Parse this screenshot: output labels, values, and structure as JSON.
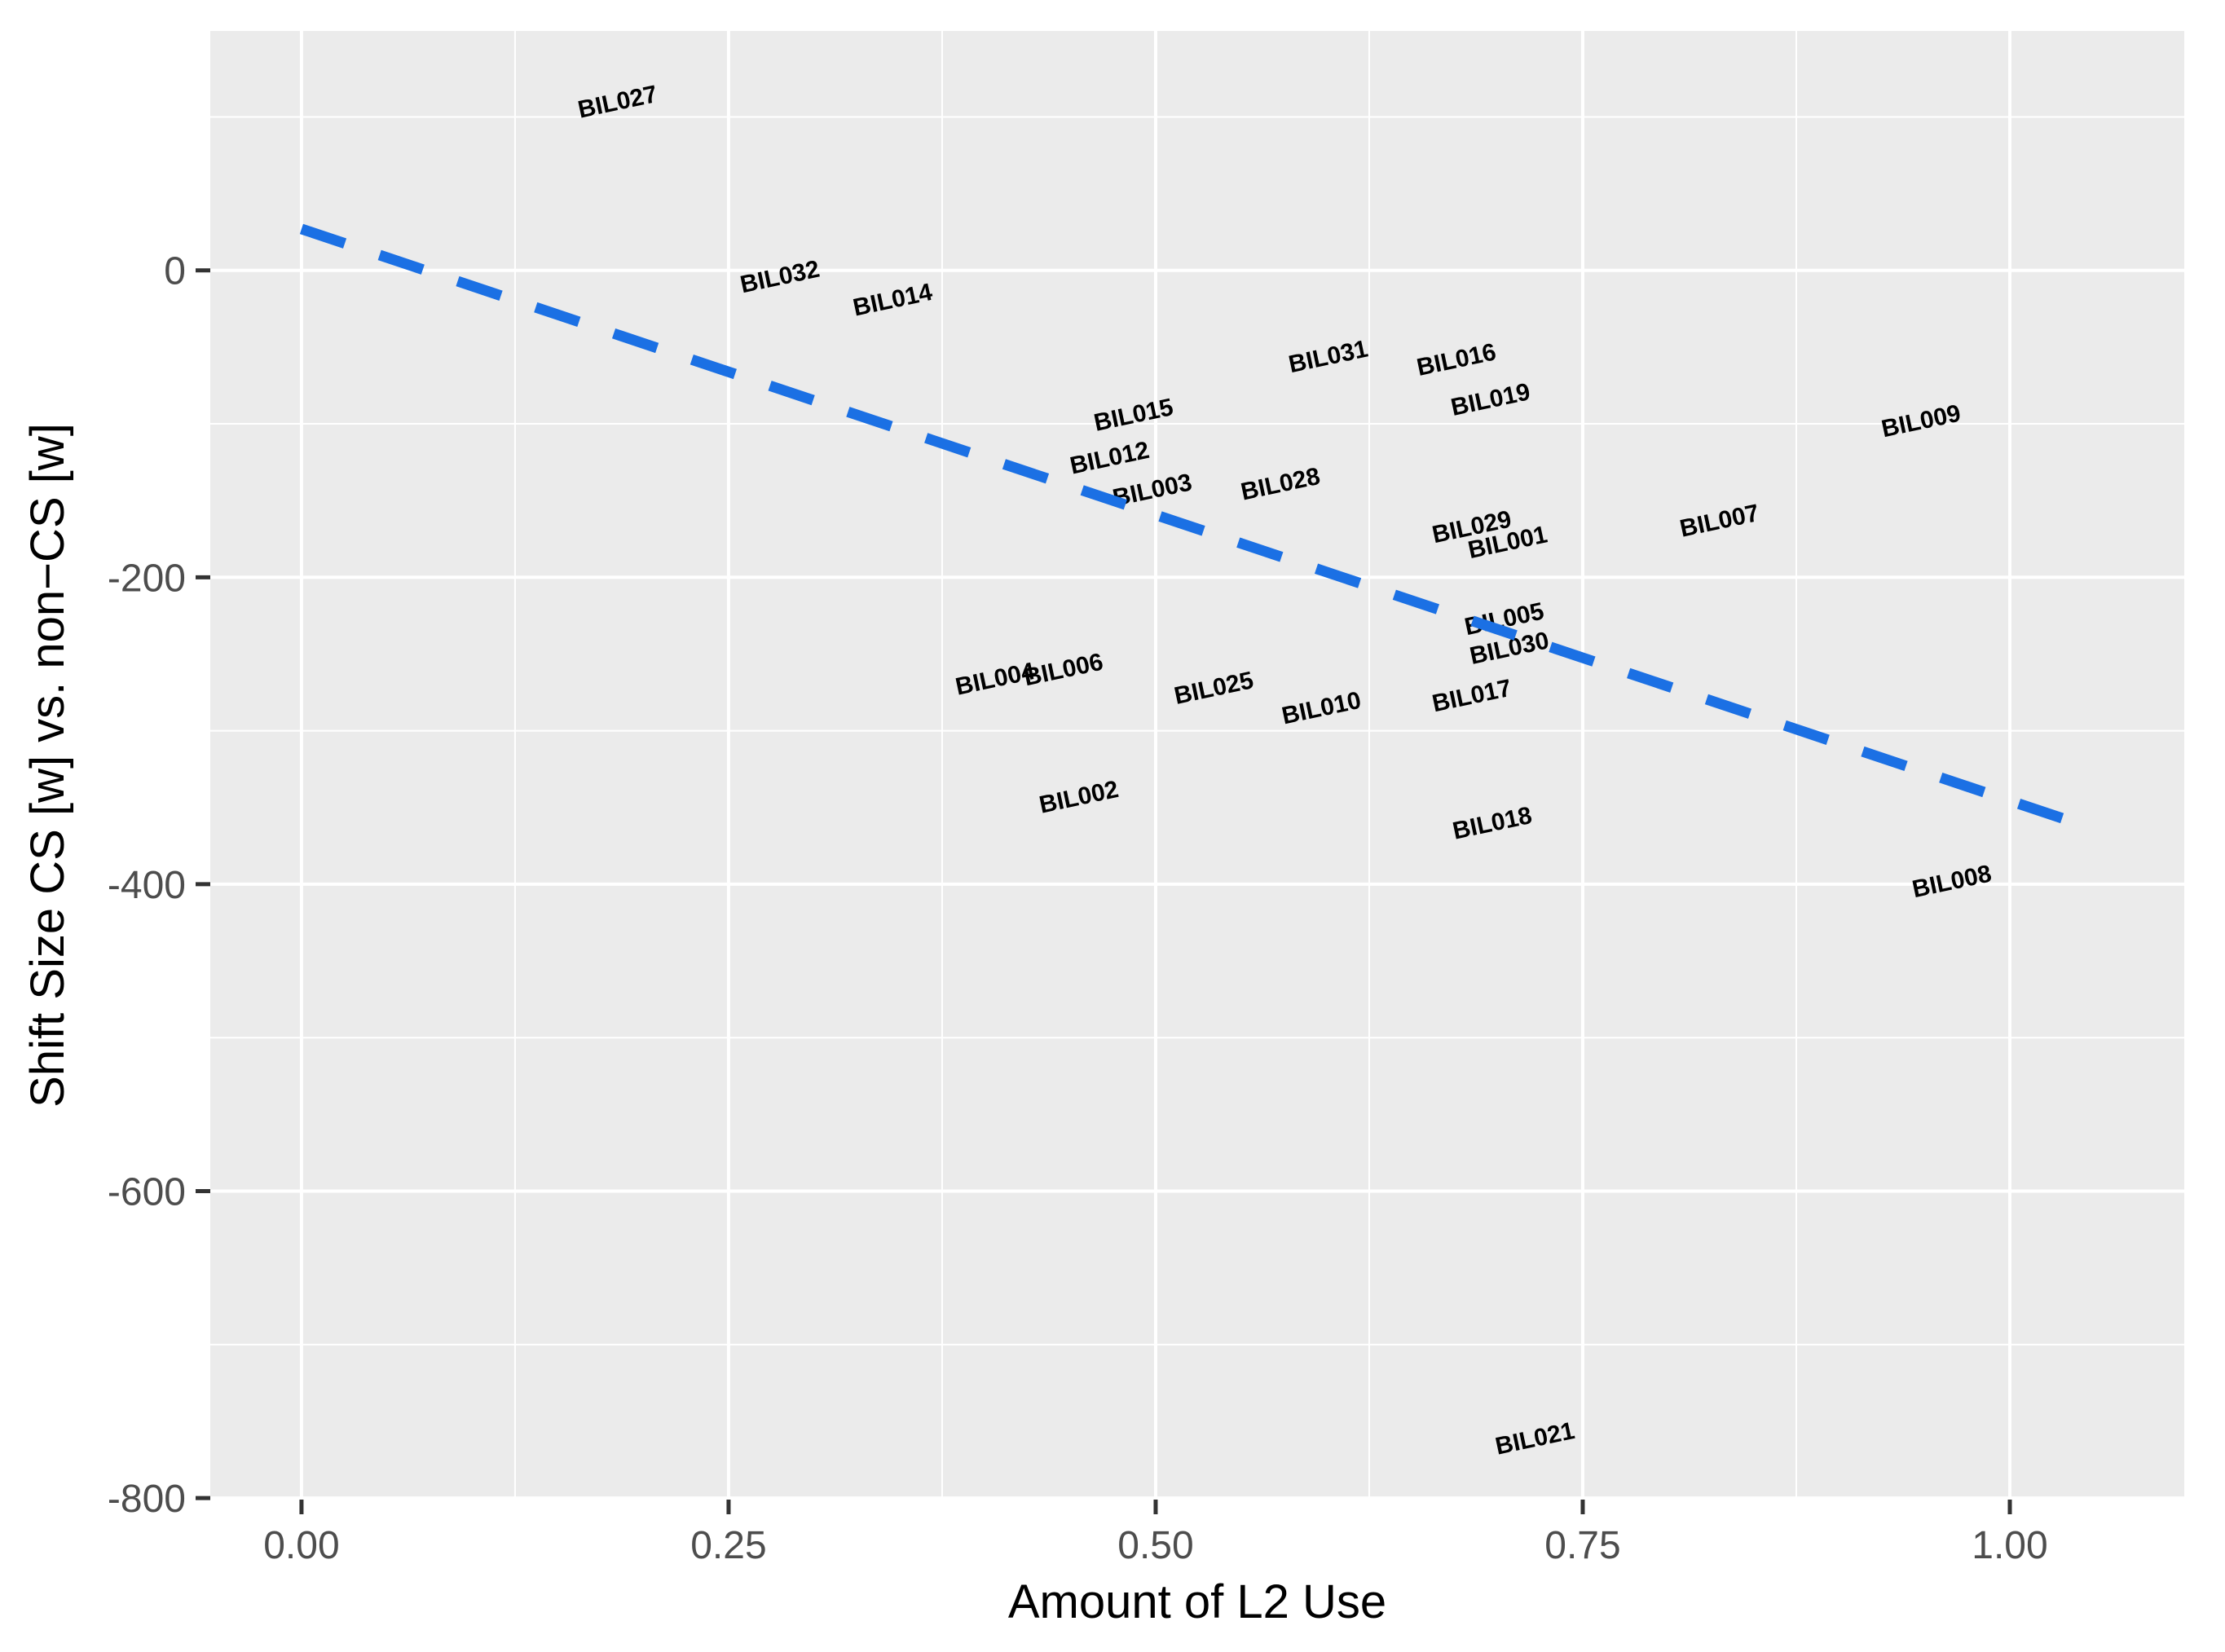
{
  "chart_data": {
    "type": "scatter",
    "title": "",
    "xlabel": "Amount of L2 Use",
    "ylabel": "Shift Size CS [w] vs. non−CS [w]",
    "xlim": [
      -0.0534,
      1.1021
    ],
    "ylim": [
      -801,
      156
    ],
    "grid": "on",
    "legend_position": "none",
    "x_ticks": [
      {
        "v": 0.0,
        "label": "0.00"
      },
      {
        "v": 0.25,
        "label": "0.25"
      },
      {
        "v": 0.5,
        "label": "0.50"
      },
      {
        "v": 0.75,
        "label": "0.75"
      },
      {
        "v": 1.0,
        "label": "1.00"
      }
    ],
    "y_ticks": [
      {
        "v": 0,
        "label": "0"
      },
      {
        "v": -200,
        "label": "-200"
      },
      {
        "v": -400,
        "label": "-400"
      },
      {
        "v": -600,
        "label": "-600"
      },
      {
        "v": -800,
        "label": "-800"
      }
    ],
    "x_minor": [
      0.125,
      0.375,
      0.625,
      0.875
    ],
    "y_minor": [
      100,
      -100,
      -300,
      -500,
      -700
    ],
    "points": [
      {
        "label": "BIL027",
        "x": 0.186,
        "y": 110
      },
      {
        "label": "BIL032",
        "x": 0.281,
        "y": -4
      },
      {
        "label": "BIL014",
        "x": 0.347,
        "y": -19
      },
      {
        "label": "BIL031",
        "x": 0.602,
        "y": -56
      },
      {
        "label": "BIL016",
        "x": 0.677,
        "y": -58
      },
      {
        "label": "BIL019",
        "x": 0.697,
        "y": -84
      },
      {
        "label": "BIL015",
        "x": 0.488,
        "y": -94
      },
      {
        "label": "BIL012",
        "x": 0.474,
        "y": -122
      },
      {
        "label": "BIL003",
        "x": 0.499,
        "y": -143
      },
      {
        "label": "BIL028",
        "x": 0.574,
        "y": -139
      },
      {
        "label": "BIL029",
        "x": 0.686,
        "y": -167
      },
      {
        "label": "BIL001",
        "x": 0.707,
        "y": -177
      },
      {
        "label": "BIL009",
        "x": 0.949,
        "y": -98
      },
      {
        "label": "BIL007",
        "x": 0.831,
        "y": -163
      },
      {
        "label": "BIL005",
        "x": 0.705,
        "y": -227
      },
      {
        "label": "BIL030",
        "x": 0.708,
        "y": -246
      },
      {
        "label": "BIL017",
        "x": 0.686,
        "y": -277
      },
      {
        "label": "BIL004",
        "x": 0.407,
        "y": -266
      },
      {
        "label": "BIL006",
        "x": 0.447,
        "y": -260
      },
      {
        "label": "BIL025",
        "x": 0.535,
        "y": -272
      },
      {
        "label": "BIL010",
        "x": 0.598,
        "y": -285
      },
      {
        "label": "BIL002",
        "x": 0.456,
        "y": -343
      },
      {
        "label": "BIL018",
        "x": 0.698,
        "y": -360
      },
      {
        "label": "BIL008",
        "x": 0.967,
        "y": -398
      },
      {
        "label": "BIL021",
        "x": 0.723,
        "y": -761
      }
    ],
    "label_rotation_deg": -12,
    "trendline": {
      "x1": 0.0,
      "y1": 27,
      "x2": 1.044,
      "y2": -362,
      "style": "dashed"
    },
    "colors": {
      "panel_background": "#EBEBEB",
      "gridline": "#FFFFFF",
      "trendline_blue": "#1B70E4",
      "tick_label_gray": "#4D4D4D",
      "tick_mark": "#333333",
      "point_label_black": "#000000"
    }
  }
}
